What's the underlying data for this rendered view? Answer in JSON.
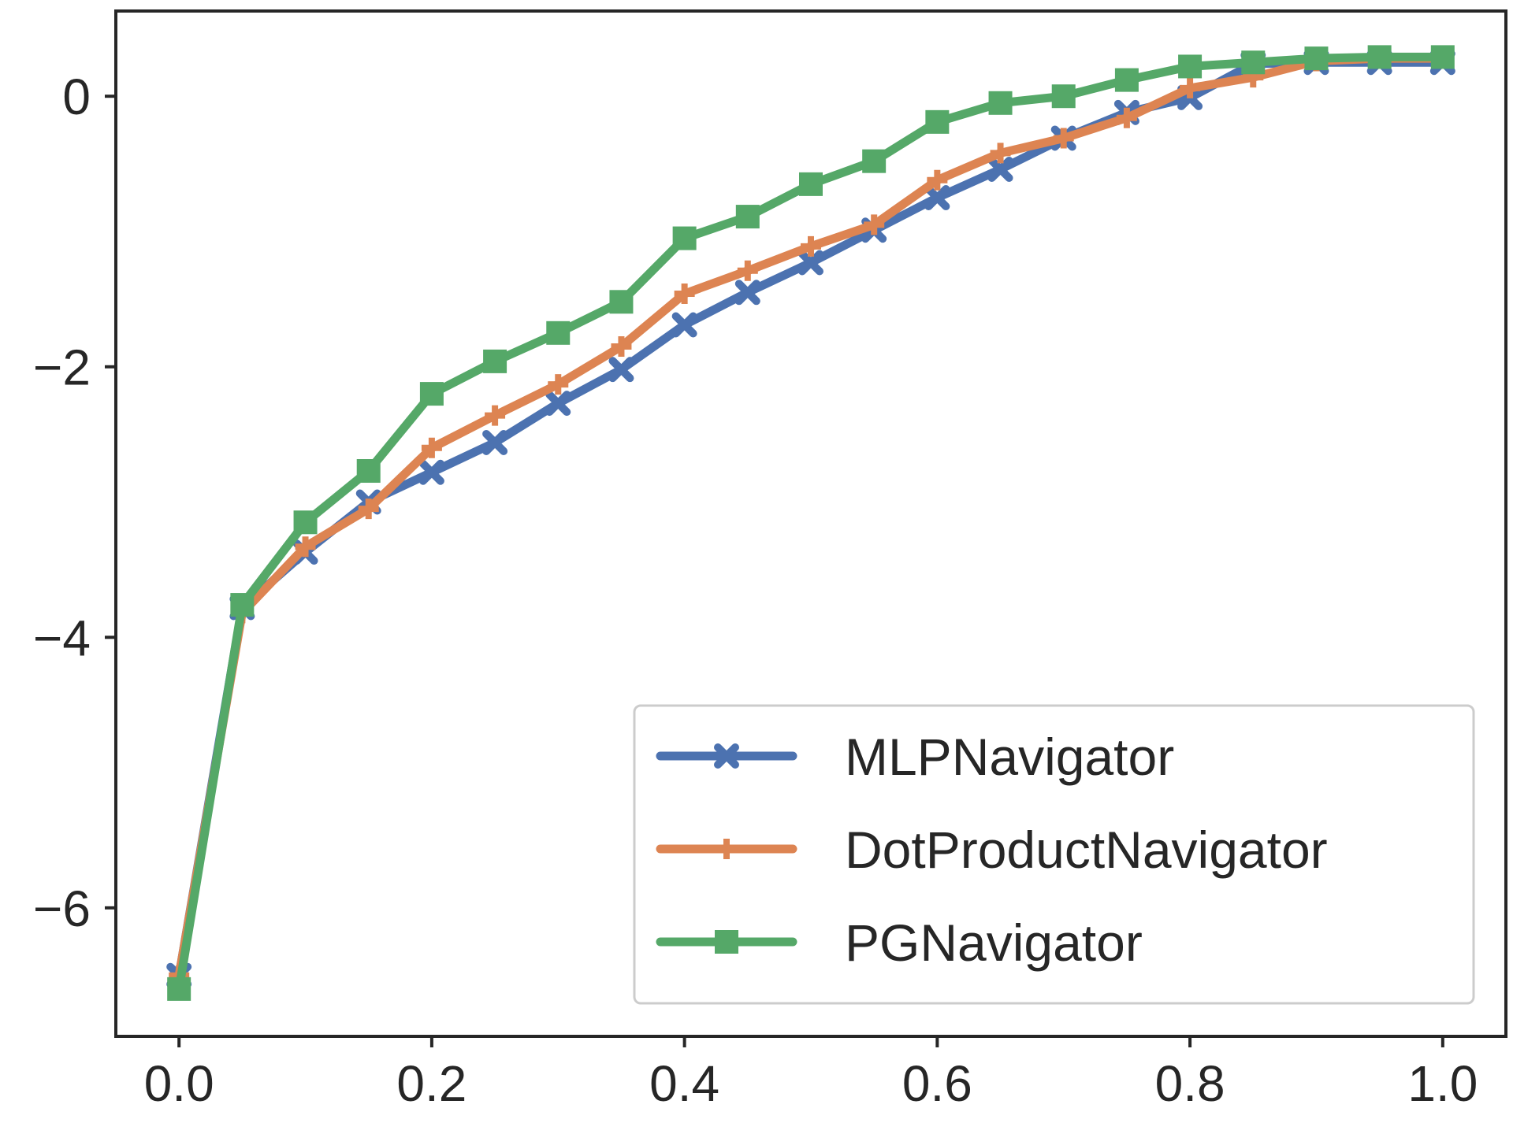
{
  "chart_data": {
    "type": "line",
    "title": "",
    "xlabel": "",
    "ylabel": "",
    "xlim": [
      -0.05,
      1.05
    ],
    "ylim": [
      -6.95,
      0.63
    ],
    "x_ticks": [
      {
        "value": 0.0,
        "label": "0.0"
      },
      {
        "value": 0.2,
        "label": "0.2"
      },
      {
        "value": 0.4,
        "label": "0.4"
      },
      {
        "value": 0.6,
        "label": "0.6"
      },
      {
        "value": 0.8,
        "label": "0.8"
      },
      {
        "value": 1.0,
        "label": "1.0"
      }
    ],
    "y_ticks": [
      {
        "value": 0,
        "label": "0"
      },
      {
        "value": -2,
        "label": "−2"
      },
      {
        "value": -4,
        "label": "−4"
      },
      {
        "value": -6,
        "label": "−6"
      }
    ],
    "grid": false,
    "legend_position": "bottom-right",
    "x": [
      0.0,
      0.05,
      0.1,
      0.15,
      0.2,
      0.25,
      0.3,
      0.35,
      0.4,
      0.45,
      0.5,
      0.55,
      0.6,
      0.65,
      0.7,
      0.75,
      0.8,
      0.85,
      0.9,
      0.95,
      1.0
    ],
    "series": [
      {
        "name": "MLPNavigator",
        "color": "#4c72b0",
        "marker": "x",
        "values": [
          -6.5,
          -3.78,
          -3.37,
          -3.0,
          -2.78,
          -2.56,
          -2.27,
          -2.02,
          -1.69,
          -1.45,
          -1.23,
          -0.99,
          -0.75,
          -0.54,
          -0.31,
          -0.12,
          -0.01,
          0.24,
          0.25,
          0.25,
          0.25
        ]
      },
      {
        "name": "DotProductNavigator",
        "color": "#dd8452",
        "marker": "plus",
        "values": [
          -6.5,
          -3.82,
          -3.33,
          -3.05,
          -2.6,
          -2.36,
          -2.13,
          -1.85,
          -1.46,
          -1.29,
          -1.11,
          -0.95,
          -0.62,
          -0.42,
          -0.31,
          -0.16,
          0.06,
          0.14,
          0.26,
          0.28,
          0.28
        ]
      },
      {
        "name": "PGNavigator",
        "color": "#55a868",
        "marker": "square",
        "values": [
          -6.6,
          -3.76,
          -3.15,
          -2.77,
          -2.2,
          -1.96,
          -1.75,
          -1.52,
          -1.05,
          -0.89,
          -0.65,
          -0.48,
          -0.19,
          -0.05,
          0.0,
          0.12,
          0.22,
          0.25,
          0.28,
          0.29,
          0.29
        ]
      }
    ]
  }
}
